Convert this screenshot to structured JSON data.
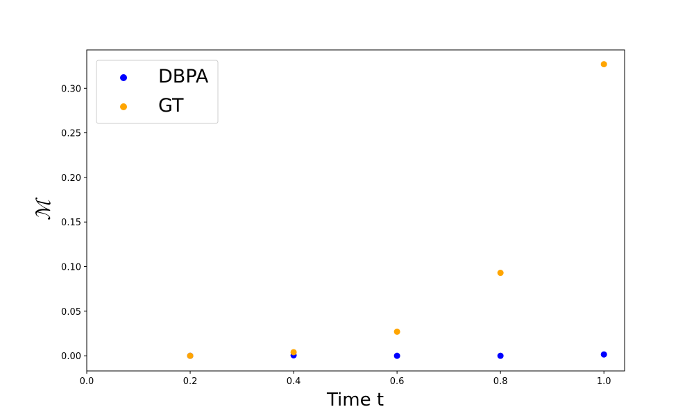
{
  "chart_data": {
    "type": "scatter",
    "title": "",
    "xlabel": "Time t",
    "ylabel": "ℳ",
    "xlim": [
      0.0,
      1.04
    ],
    "ylim": [
      -0.017,
      0.343
    ],
    "xticks": [
      "0.0",
      "0.2",
      "0.4",
      "0.6",
      "0.8",
      "1.0"
    ],
    "yticks": [
      "0.00",
      "0.05",
      "0.10",
      "0.15",
      "0.20",
      "0.25",
      "0.30"
    ],
    "grid": false,
    "legend_position": "top-left",
    "series": [
      {
        "name": "DBPA",
        "color": "#0000ff",
        "x": [
          0.2,
          0.4,
          0.6,
          0.8,
          1.0
        ],
        "y": [
          0.0,
          0.0005,
          0.0,
          0.0,
          0.0015
        ]
      },
      {
        "name": "GT",
        "color": "#ffa500",
        "x": [
          0.2,
          0.4,
          0.6,
          0.8,
          1.0
        ],
        "y": [
          0.0,
          0.004,
          0.027,
          0.093,
          0.327
        ]
      }
    ]
  }
}
